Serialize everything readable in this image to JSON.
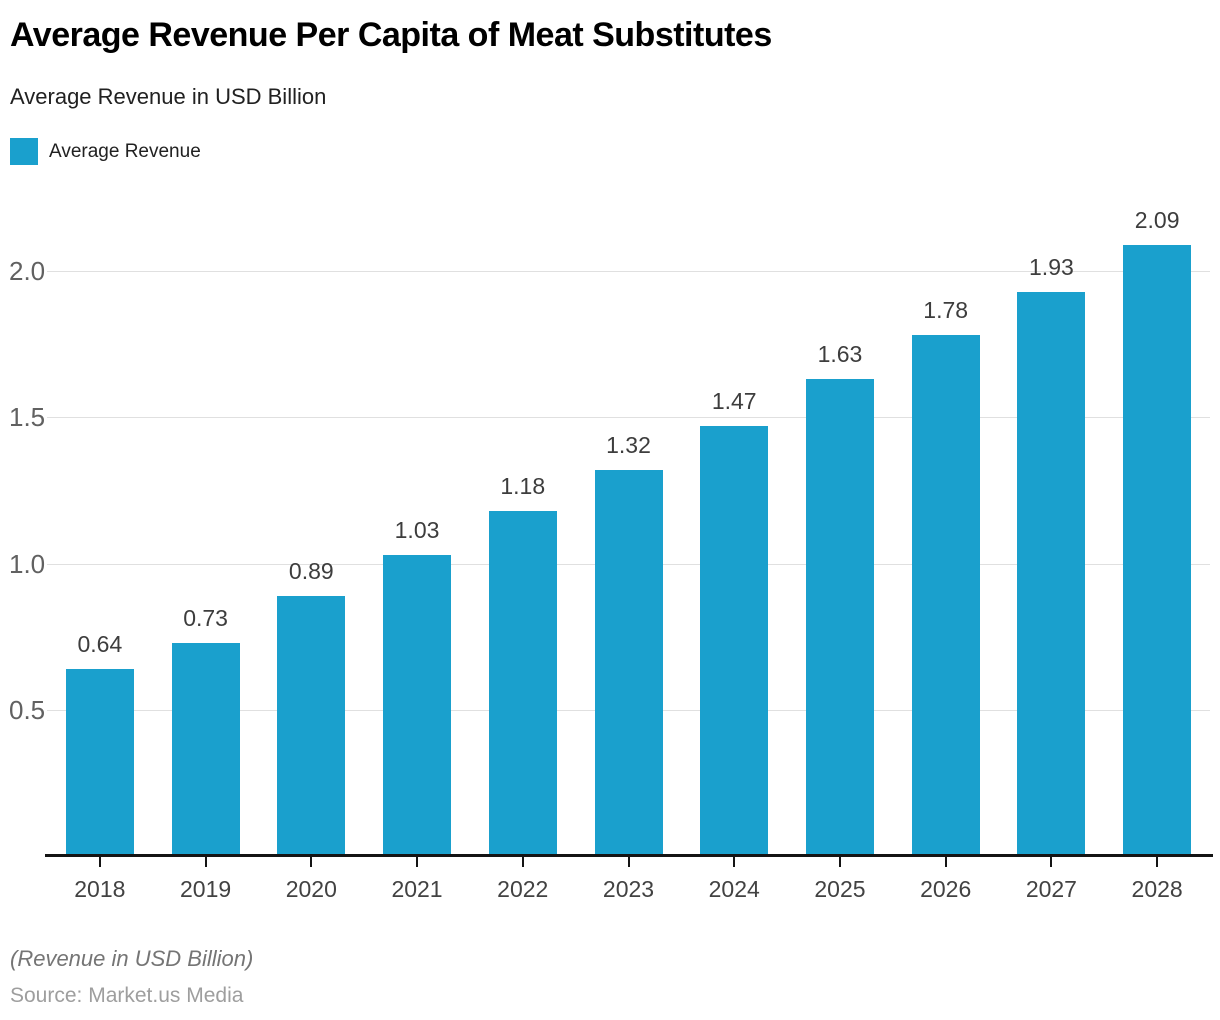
{
  "header": {
    "title": "Average Revenue Per Capita of Meat Substitutes",
    "subtitle": "Average Revenue in USD Billion",
    "legend": {
      "label": "Average Revenue",
      "swatch_color": "#1aa0cd"
    }
  },
  "chart_data": {
    "type": "bar",
    "title": "Average Revenue Per Capita of Meat Substitutes",
    "subtitle": "Average Revenue in USD Billion",
    "categories": [
      "2018",
      "2019",
      "2020",
      "2021",
      "2022",
      "2023",
      "2024",
      "2025",
      "2026",
      "2027",
      "2028"
    ],
    "values": [
      0.64,
      0.73,
      0.89,
      1.03,
      1.18,
      1.32,
      1.47,
      1.63,
      1.78,
      1.93,
      2.09
    ],
    "value_labels": [
      "0.64",
      "0.73",
      "0.89",
      "1.03",
      "1.18",
      "1.32",
      "1.47",
      "1.63",
      "1.78",
      "1.93",
      "2.09"
    ],
    "series_name": "Average Revenue",
    "xlabel": "",
    "ylabel": "",
    "y_ticks": [
      "0.5",
      "1.0",
      "1.5",
      "2.0"
    ],
    "y_tick_values": [
      0.5,
      1.0,
      1.5,
      2.0
    ],
    "ylim": [
      0,
      2.25
    ],
    "grid": "horizontal",
    "legend_position": "top-left",
    "bar_color": "#1aa0cd"
  },
  "footer": {
    "note": "(Revenue in USD Billion)",
    "source": "Source: Market.us Media"
  },
  "colors": {
    "bar": "#1aa0cd",
    "background": "#ffffff",
    "title": "#000000",
    "subtitle": "#212121",
    "gridline": "#e0e0e0",
    "axis_line": "#141414",
    "y_tick_label": "#616161",
    "x_tick_label": "#424242",
    "value_label": "#3d3d3d",
    "footnote": "#757575",
    "source": "#9e9e9e"
  }
}
